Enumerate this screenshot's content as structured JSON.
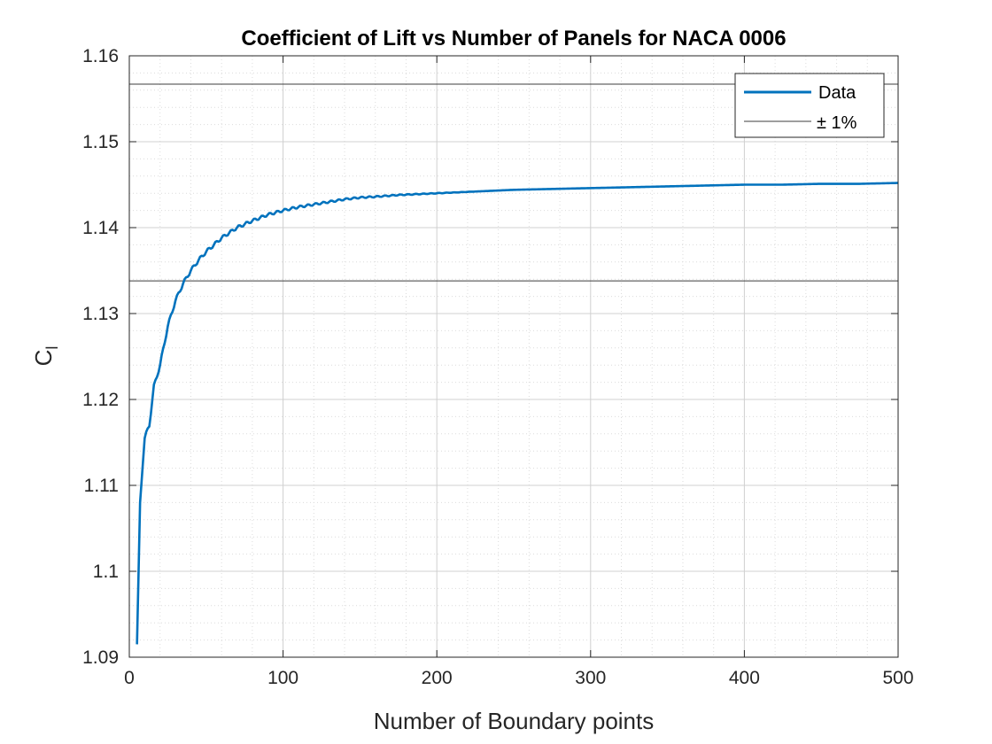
{
  "chart_data": {
    "type": "line",
    "title": "Coefficient of Lift vs Number of Panels for NACA 0006",
    "xlabel": "Number of Boundary points",
    "ylabel_main": "C",
    "ylabel_sub": "l",
    "xlim": [
      0,
      500
    ],
    "ylim": [
      1.09,
      1.16
    ],
    "xticks": [
      0,
      100,
      200,
      300,
      400,
      500
    ],
    "xtick_labels": [
      "0",
      "100",
      "200",
      "300",
      "400",
      "500"
    ],
    "yticks": [
      1.09,
      1.1,
      1.11,
      1.12,
      1.13,
      1.14,
      1.15,
      1.16
    ],
    "ytick_labels": [
      "1.09",
      "1.1",
      "1.11",
      "1.12",
      "1.13",
      "1.14",
      "1.15",
      "1.16"
    ],
    "grid": true,
    "minor_grid": true,
    "legend_position": "top-right",
    "series": [
      {
        "name": "Data",
        "color": "#0072bd",
        "x": [
          5,
          7,
          10,
          13,
          16,
          20,
          25,
          30,
          35,
          40,
          45,
          50,
          60,
          70,
          80,
          90,
          100,
          110,
          120,
          130,
          140,
          150,
          160,
          175,
          200,
          225,
          250,
          275,
          300,
          325,
          350,
          375,
          400,
          425,
          450,
          475,
          500
        ],
        "y": [
          1.0915,
          1.108,
          1.1155,
          1.117,
          1.1215,
          1.124,
          1.1285,
          1.1315,
          1.1335,
          1.135,
          1.1362,
          1.1372,
          1.1388,
          1.14,
          1.1408,
          1.1415,
          1.142,
          1.1424,
          1.1427,
          1.143,
          1.1433,
          1.1435,
          1.1436,
          1.1438,
          1.144,
          1.1442,
          1.1444,
          1.1445,
          1.1446,
          1.1447,
          1.1448,
          1.1449,
          1.145,
          1.145,
          1.1451,
          1.1451,
          1.1452
        ]
      }
    ],
    "reference_lines": {
      "name": "± 1%",
      "color": "#3c3c3c",
      "values": [
        1.1567,
        1.1338
      ]
    }
  }
}
